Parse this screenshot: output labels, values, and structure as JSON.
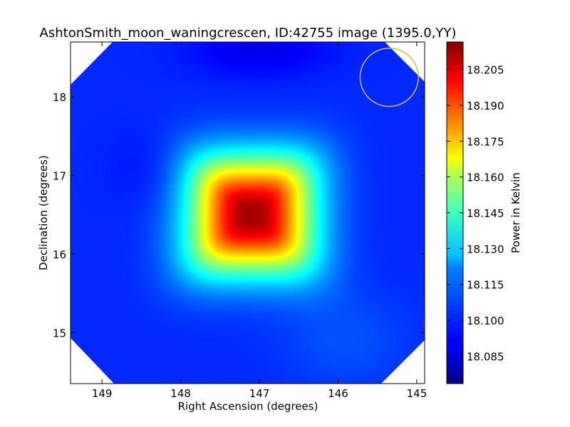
{
  "chart_data": {
    "type": "heatmap",
    "title": "AshtonSmith_moon_waningcrescen, ID:42755 image (1395.0,YY)",
    "xlabel": "Right Ascension (degrees)",
    "ylabel": "Declination (degrees)",
    "xlim": [
      149.4,
      144.9
    ],
    "ylim": [
      14.35,
      18.7
    ],
    "x_ticks": [
      149,
      148,
      147,
      146,
      145
    ],
    "y_ticks": [
      15,
      16,
      17,
      18
    ],
    "colorbar": {
      "label": "Power in Kelvin",
      "range": [
        18.0735,
        18.2165
      ],
      "ticks": [
        "18.085",
        "18.100",
        "18.115",
        "18.130",
        "18.145",
        "18.160",
        "18.175",
        "18.190",
        "18.205"
      ],
      "colormap": "jet"
    },
    "source_blob": {
      "center_ra": 147.1,
      "center_dec": 16.5,
      "peak_value": 18.212,
      "background_value": 18.097
    },
    "beam_circle": {
      "center_ra": 145.35,
      "center_dec": 18.25,
      "radius_deg": 0.37,
      "color": "#c8c040"
    },
    "grid": false,
    "legend": "none"
  }
}
